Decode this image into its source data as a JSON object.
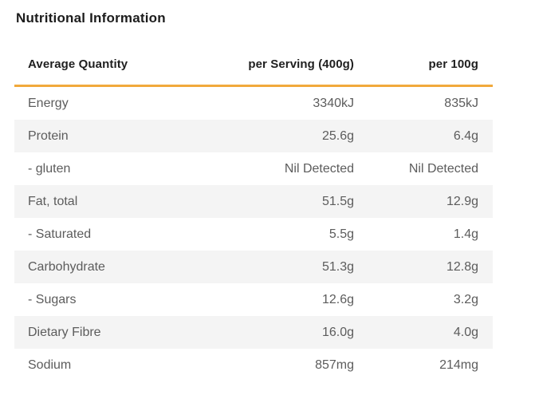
{
  "header": {
    "title": "Nutritional Information"
  },
  "colors": {
    "accent_rule": "#F1A93B",
    "stripe_row": "#F4F4F4",
    "body_text": "#5C5C5C",
    "heading_text": "#1C1C1C"
  },
  "chart_data": {
    "type": "table",
    "title": "Nutritional Information",
    "columns": [
      "Average Quantity",
      "per Serving (400g)",
      "per 100g"
    ],
    "rows": [
      [
        "Energy",
        "3340kJ",
        "835kJ"
      ],
      [
        "Protein",
        "25.6g",
        "6.4g"
      ],
      [
        "- gluten",
        "Nil Detected",
        "Nil Detected"
      ],
      [
        "Fat, total",
        "51.5g",
        "12.9g"
      ],
      [
        "- Saturated",
        "5.5g",
        "1.4g"
      ],
      [
        "Carbohydrate",
        "51.3g",
        "12.8g"
      ],
      [
        "- Sugars",
        "12.6g",
        "3.2g"
      ],
      [
        "Dietary Fibre",
        "16.0g",
        "4.0g"
      ],
      [
        "Sodium",
        "857mg",
        "214mg"
      ]
    ],
    "layout": {
      "stripe_alternate_rows": true,
      "value_columns_right_aligned": true,
      "header_rule_color": "#F1A93B"
    }
  }
}
